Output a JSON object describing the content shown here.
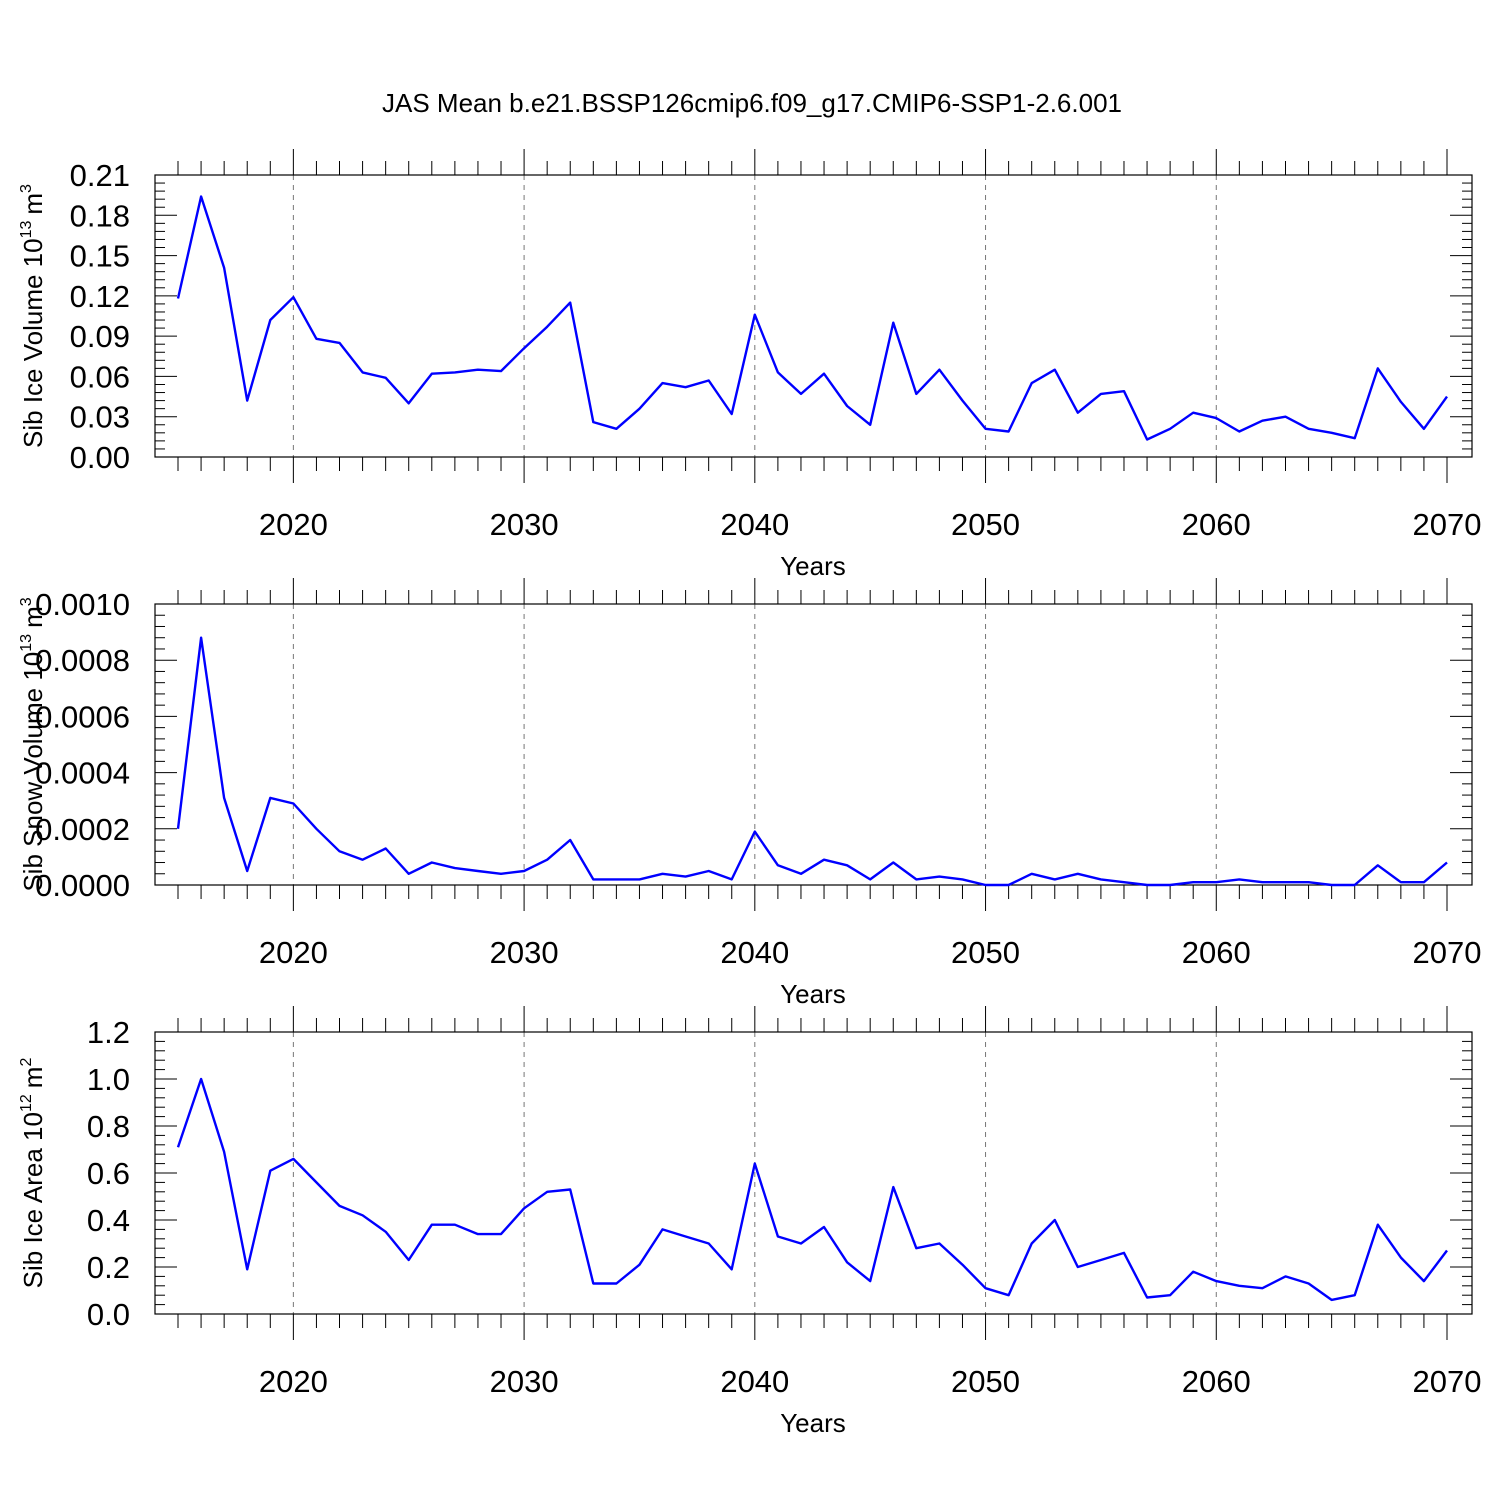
{
  "figure_title": "JAS Mean b.e21.BSSP126cmip6.f09_g17.CMIP6-SSP1-2.6.001",
  "colors": {
    "series": "#0000ff",
    "axes": "#000000",
    "grid": "#777777"
  },
  "chart_data": [
    {
      "type": "line",
      "title": "",
      "xlabel": "Years",
      "ylabel": "Sib Ice Volume 10",
      "ylabel_exponent": "13",
      "ylabel_unit": "m",
      "ylabel_unit_exponent": "3",
      "xlim": [
        2015,
        2070
      ],
      "ylim": [
        0,
        0.21
      ],
      "xticks": [
        2020,
        2030,
        2040,
        2050,
        2060,
        2070
      ],
      "xtick_labels": [
        "2020",
        "2030",
        "2040",
        "2050",
        "2060",
        "2070"
      ],
      "yticks": [
        0,
        0.03,
        0.06,
        0.09,
        0.12,
        0.15,
        0.18,
        0.21
      ],
      "ytick_labels": [
        "0.00",
        "0.03",
        "0.06",
        "0.09",
        "0.12",
        "0.15",
        "0.18",
        "0.21"
      ],
      "grid": "x-dashed",
      "x": [
        2015,
        2016,
        2017,
        2018,
        2019,
        2020,
        2021,
        2022,
        2023,
        2024,
        2025,
        2026,
        2027,
        2028,
        2029,
        2030,
        2031,
        2032,
        2033,
        2034,
        2035,
        2036,
        2037,
        2038,
        2039,
        2040,
        2041,
        2042,
        2043,
        2044,
        2045,
        2046,
        2047,
        2048,
        2049,
        2050,
        2051,
        2052,
        2053,
        2054,
        2055,
        2056,
        2057,
        2058,
        2059,
        2060,
        2061,
        2062,
        2063,
        2064,
        2065,
        2066,
        2067,
        2068,
        2069,
        2070
      ],
      "series": [
        {
          "values": [
            0.118,
            0.194,
            0.141,
            0.042,
            0.102,
            0.119,
            0.088,
            0.085,
            0.063,
            0.059,
            0.04,
            0.062,
            0.063,
            0.065,
            0.064,
            0.081,
            0.097,
            0.115,
            0.026,
            0.021,
            0.036,
            0.055,
            0.052,
            0.057,
            0.032,
            0.106,
            0.063,
            0.047,
            0.062,
            0.038,
            0.024,
            0.1,
            0.047,
            0.065,
            0.042,
            0.021,
            0.019,
            0.055,
            0.065,
            0.033,
            0.047,
            0.049,
            0.013,
            0.021,
            0.033,
            0.029,
            0.019,
            0.027,
            0.03,
            0.021,
            0.018,
            0.014,
            0.066,
            0.041,
            0.021,
            0.045
          ]
        }
      ]
    },
    {
      "type": "line",
      "title": "",
      "xlabel": "Years",
      "ylabel": "Sib Snow Volume 10",
      "ylabel_exponent": "13",
      "ylabel_unit": "m",
      "ylabel_unit_exponent": "3",
      "xlim": [
        2015,
        2070
      ],
      "ylim": [
        0,
        0.001
      ],
      "xticks": [
        2020,
        2030,
        2040,
        2050,
        2060,
        2070
      ],
      "xtick_labels": [
        "2020",
        "2030",
        "2040",
        "2050",
        "2060",
        "2070"
      ],
      "yticks": [
        0,
        0.0002,
        0.0004,
        0.0006,
        0.0008,
        0.001
      ],
      "ytick_labels": [
        "0.0000",
        "0.0002",
        "0.0004",
        "0.0006",
        "0.0008",
        "0.0010"
      ],
      "grid": "x-dashed",
      "x": [
        2015,
        2016,
        2017,
        2018,
        2019,
        2020,
        2021,
        2022,
        2023,
        2024,
        2025,
        2026,
        2027,
        2028,
        2029,
        2030,
        2031,
        2032,
        2033,
        2034,
        2035,
        2036,
        2037,
        2038,
        2039,
        2040,
        2041,
        2042,
        2043,
        2044,
        2045,
        2046,
        2047,
        2048,
        2049,
        2050,
        2051,
        2052,
        2053,
        2054,
        2055,
        2056,
        2057,
        2058,
        2059,
        2060,
        2061,
        2062,
        2063,
        2064,
        2065,
        2066,
        2067,
        2068,
        2069,
        2070
      ],
      "series": [
        {
          "values": [
            0.0002,
            0.00088,
            0.00031,
            5e-05,
            0.00031,
            0.00029,
            0.0002,
            0.00012,
            9e-05,
            0.00013,
            4e-05,
            8e-05,
            6e-05,
            5e-05,
            4e-05,
            5e-05,
            9e-05,
            0.00016,
            2e-05,
            2e-05,
            2e-05,
            4e-05,
            3e-05,
            5e-05,
            2e-05,
            0.00019,
            7e-05,
            4e-05,
            9e-05,
            7e-05,
            2e-05,
            8e-05,
            2e-05,
            3e-05,
            2e-05,
            0.0,
            0.0,
            4e-05,
            2e-05,
            4e-05,
            2e-05,
            1e-05,
            0.0,
            0.0,
            1e-05,
            1e-05,
            2e-05,
            1e-05,
            1e-05,
            1e-05,
            0.0,
            0.0,
            7e-05,
            1e-05,
            1e-05,
            8e-05
          ]
        }
      ]
    },
    {
      "type": "line",
      "title": "",
      "xlabel": "Years",
      "ylabel": "Sib Ice Area 10",
      "ylabel_exponent": "12",
      "ylabel_unit": "m",
      "ylabel_unit_exponent": "2",
      "xlim": [
        2015,
        2070
      ],
      "ylim": [
        0,
        1.2
      ],
      "xticks": [
        2020,
        2030,
        2040,
        2050,
        2060,
        2070
      ],
      "xtick_labels": [
        "2020",
        "2030",
        "2040",
        "2050",
        "2060",
        "2070"
      ],
      "yticks": [
        0,
        0.2,
        0.4,
        0.6,
        0.8,
        1.0,
        1.2
      ],
      "ytick_labels": [
        "0.0",
        "0.2",
        "0.4",
        "0.6",
        "0.8",
        "1.0",
        "1.2"
      ],
      "grid": "x-dashed",
      "x": [
        2015,
        2016,
        2017,
        2018,
        2019,
        2020,
        2021,
        2022,
        2023,
        2024,
        2025,
        2026,
        2027,
        2028,
        2029,
        2030,
        2031,
        2032,
        2033,
        2034,
        2035,
        2036,
        2037,
        2038,
        2039,
        2040,
        2041,
        2042,
        2043,
        2044,
        2045,
        2046,
        2047,
        2048,
        2049,
        2050,
        2051,
        2052,
        2053,
        2054,
        2055,
        2056,
        2057,
        2058,
        2059,
        2060,
        2061,
        2062,
        2063,
        2064,
        2065,
        2066,
        2067,
        2068,
        2069,
        2070
      ],
      "series": [
        {
          "values": [
            0.71,
            1.0,
            0.69,
            0.19,
            0.61,
            0.66,
            0.56,
            0.46,
            0.42,
            0.35,
            0.23,
            0.38,
            0.38,
            0.34,
            0.34,
            0.45,
            0.52,
            0.53,
            0.13,
            0.13,
            0.21,
            0.36,
            0.33,
            0.3,
            0.19,
            0.64,
            0.33,
            0.3,
            0.37,
            0.22,
            0.14,
            0.54,
            0.28,
            0.3,
            0.21,
            0.11,
            0.08,
            0.3,
            0.4,
            0.2,
            0.23,
            0.26,
            0.07,
            0.08,
            0.18,
            0.14,
            0.12,
            0.11,
            0.16,
            0.13,
            0.06,
            0.08,
            0.38,
            0.24,
            0.14,
            0.27
          ]
        }
      ]
    }
  ]
}
